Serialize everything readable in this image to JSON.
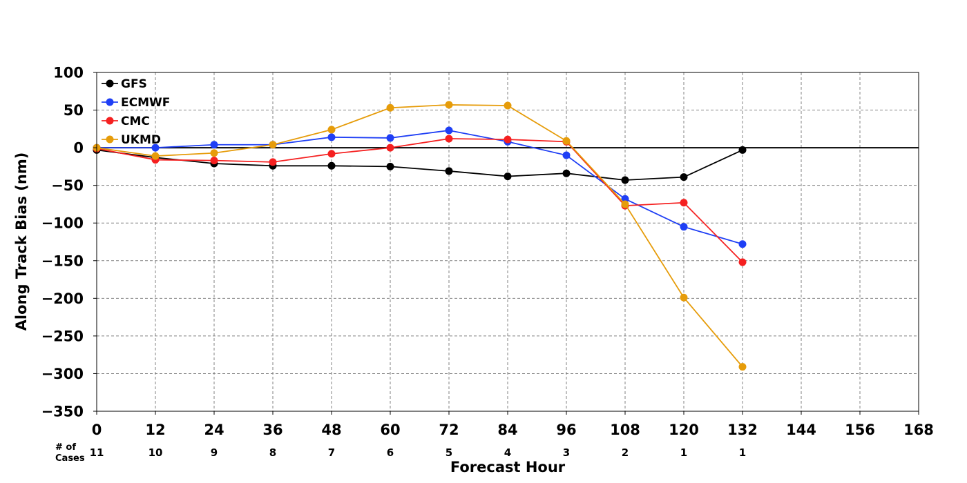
{
  "chart_data": {
    "type": "line",
    "xlabel": "Forecast Hour",
    "ylabel": "Along Track Bias (nm)",
    "xlim": [
      0,
      168
    ],
    "ylim": [
      -350,
      100
    ],
    "x_ticks": [
      0,
      12,
      24,
      36,
      48,
      60,
      72,
      84,
      96,
      108,
      120,
      132,
      144,
      156,
      168
    ],
    "y_ticks": [
      100,
      50,
      0,
      -50,
      -100,
      -150,
      -200,
      -250,
      -300,
      -350
    ],
    "x_tick_labels": [
      "0",
      "12",
      "24",
      "36",
      "48",
      "60",
      "72",
      "84",
      "96",
      "108",
      "120",
      "132",
      "144",
      "156",
      "168"
    ],
    "y_tick_labels": [
      "100",
      "50",
      "0",
      "−50",
      "−100",
      "−150",
      "−200",
      "−250",
      "−300",
      "−350"
    ],
    "grid": true,
    "zero_line": true,
    "legend_position": "top-left",
    "cases_label": [
      "# of",
      "Cases"
    ],
    "cases": [
      {
        "x": 0,
        "n": "11"
      },
      {
        "x": 12,
        "n": "10"
      },
      {
        "x": 24,
        "n": "9"
      },
      {
        "x": 36,
        "n": "8"
      },
      {
        "x": 48,
        "n": "7"
      },
      {
        "x": 60,
        "n": "6"
      },
      {
        "x": 72,
        "n": "5"
      },
      {
        "x": 84,
        "n": "4"
      },
      {
        "x": 96,
        "n": "3"
      },
      {
        "x": 108,
        "n": "2"
      },
      {
        "x": 120,
        "n": "1"
      },
      {
        "x": 132,
        "n": "1"
      }
    ],
    "x": [
      0,
      12,
      24,
      36,
      48,
      60,
      72,
      84,
      96,
      108,
      120,
      132
    ],
    "series": [
      {
        "name": "GFS",
        "color": "#000000",
        "values": [
          -3,
          -13,
          -21,
          -24,
          -24,
          -25,
          -31,
          -38,
          -34,
          -43,
          -39,
          -3
        ]
      },
      {
        "name": "ECMWF",
        "color": "#1f3ff5",
        "values": [
          0,
          0,
          4,
          4,
          14,
          13,
          23,
          8,
          -10,
          -68,
          -105,
          -128
        ]
      },
      {
        "name": "CMC",
        "color": "#f52020",
        "values": [
          -1,
          -16,
          -17,
          -19,
          -8,
          0,
          12,
          11,
          8,
          -77,
          -73,
          -152
        ]
      },
      {
        "name": "UKMD",
        "color": "#e69c0a",
        "values": [
          0,
          -11,
          -7,
          4,
          24,
          53,
          57,
          56,
          9,
          -75,
          -199,
          -291
        ]
      }
    ]
  }
}
